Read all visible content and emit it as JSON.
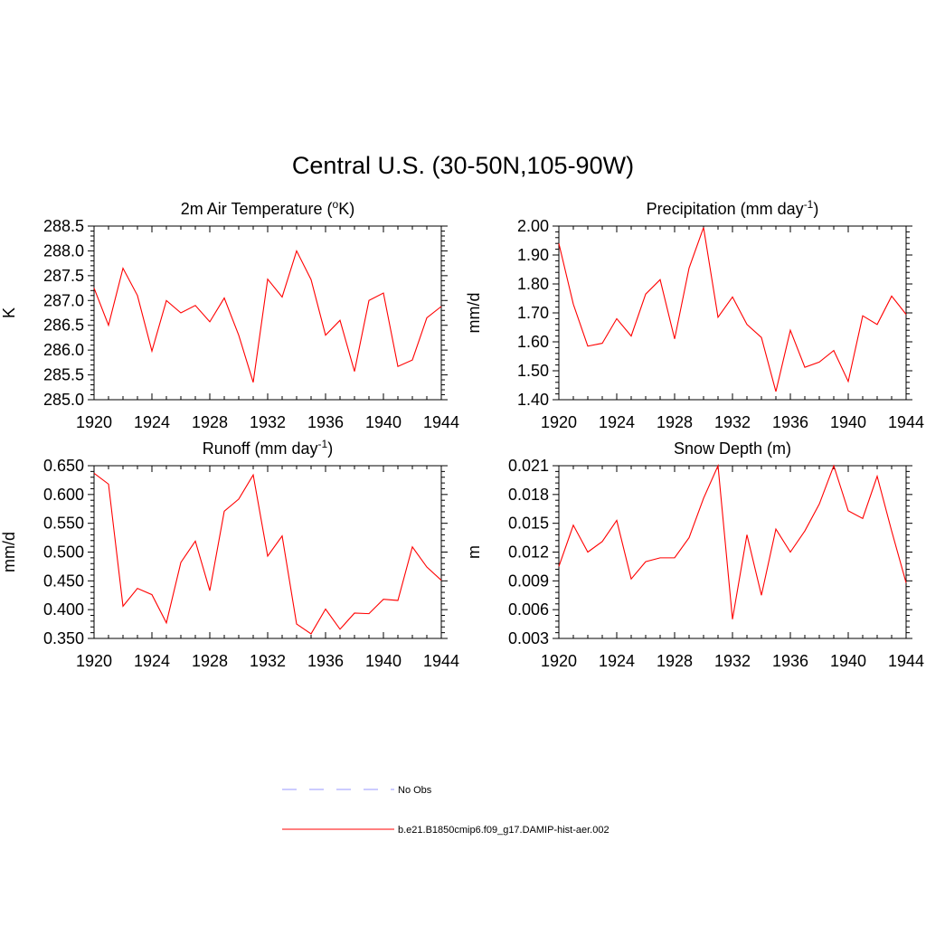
{
  "figure": {
    "title": "Central U.S. (30-50N,105-90W)"
  },
  "legend": {
    "items": [
      {
        "label": "No Obs",
        "color": "#9999ff",
        "dash": "dashed"
      },
      {
        "label": "b.e21.B1850cmip6.f09_g17.DAMIP-hist-aer.002",
        "color": "#ff0000",
        "dash": "solid"
      }
    ]
  },
  "chart_data": [
    {
      "type": "line",
      "title": "2m Air Temperature (oK)",
      "title_parts": [
        {
          "t": "2m Air Temperature ("
        },
        {
          "t": "o",
          "sup": true
        },
        {
          "t": "K)"
        }
      ],
      "xlabel": "",
      "ylabel": "K",
      "xlim": [
        1920,
        1944
      ],
      "ylim": [
        285.0,
        288.5
      ],
      "xticks": [
        "1920",
        "1924",
        "1928",
        "1932",
        "1936",
        "1940",
        "1944"
      ],
      "yticks": [
        "285.0",
        "285.5",
        "286.0",
        "286.5",
        "287.0",
        "287.5",
        "288.0",
        "288.5"
      ],
      "grid": false,
      "x": [
        1920,
        1921,
        1922,
        1923,
        1924,
        1925,
        1926,
        1927,
        1928,
        1929,
        1930,
        1931,
        1932,
        1933,
        1934,
        1935,
        1936,
        1937,
        1938,
        1939,
        1940,
        1941,
        1942,
        1943,
        1944
      ],
      "series": [
        {
          "name": "b.e21.B1850cmip6.f09_g17.DAMIP-hist-aer.002",
          "color": "#ff0000",
          "values": [
            287.25,
            286.5,
            287.65,
            287.1,
            285.98,
            287.0,
            286.75,
            286.9,
            286.57,
            287.05,
            286.3,
            285.35,
            287.43,
            287.07,
            288.0,
            287.42,
            286.3,
            286.6,
            285.57,
            287.0,
            287.15,
            285.67,
            285.8,
            286.65,
            286.88
          ]
        }
      ]
    },
    {
      "type": "line",
      "title": "Precipitation (mm day-1)",
      "title_parts": [
        {
          "t": "Precipitation (mm day"
        },
        {
          "t": "-1",
          "sup": true
        },
        {
          "t": ")"
        }
      ],
      "xlabel": "",
      "ylabel": "mm/d",
      "xlim": [
        1920,
        1944
      ],
      "ylim": [
        1.4,
        2.0
      ],
      "xticks": [
        "1920",
        "1924",
        "1928",
        "1932",
        "1936",
        "1940",
        "1944"
      ],
      "yticks": [
        "1.40",
        "1.50",
        "1.60",
        "1.70",
        "1.80",
        "1.90",
        "2.00"
      ],
      "grid": false,
      "x": [
        1920,
        1921,
        1922,
        1923,
        1924,
        1925,
        1926,
        1927,
        1928,
        1929,
        1930,
        1931,
        1932,
        1933,
        1934,
        1935,
        1936,
        1937,
        1938,
        1939,
        1940,
        1941,
        1942,
        1943,
        1944
      ],
      "series": [
        {
          "name": "b.e21.B1850cmip6.f09_g17.DAMIP-hist-aer.002",
          "color": "#ff0000",
          "values": [
            1.94,
            1.73,
            1.585,
            1.595,
            1.68,
            1.62,
            1.765,
            1.815,
            1.61,
            1.855,
            1.995,
            1.685,
            1.755,
            1.66,
            1.615,
            1.428,
            1.64,
            1.512,
            1.53,
            1.57,
            1.463,
            1.69,
            1.66,
            1.758,
            1.695
          ]
        }
      ]
    },
    {
      "type": "line",
      "title": "Runoff (mm day-1)",
      "title_parts": [
        {
          "t": "Runoff (mm day"
        },
        {
          "t": "-1",
          "sup": true
        },
        {
          "t": ")"
        }
      ],
      "xlabel": "",
      "ylabel": "mm/d",
      "xlim": [
        1920,
        1944
      ],
      "ylim": [
        0.35,
        0.65
      ],
      "xticks": [
        "1920",
        "1924",
        "1928",
        "1932",
        "1936",
        "1940",
        "1944"
      ],
      "yticks": [
        "0.350",
        "0.400",
        "0.450",
        "0.500",
        "0.550",
        "0.600",
        "0.650"
      ],
      "grid": false,
      "x": [
        1920,
        1921,
        1922,
        1923,
        1924,
        1925,
        1926,
        1927,
        1928,
        1929,
        1930,
        1931,
        1932,
        1933,
        1934,
        1935,
        1936,
        1937,
        1938,
        1939,
        1940,
        1941,
        1942,
        1943,
        1944
      ],
      "series": [
        {
          "name": "b.e21.B1850cmip6.f09_g17.DAMIP-hist-aer.002",
          "color": "#ff0000",
          "values": [
            0.637,
            0.618,
            0.406,
            0.437,
            0.426,
            0.377,
            0.482,
            0.519,
            0.433,
            0.571,
            0.592,
            0.634,
            0.493,
            0.528,
            0.375,
            0.358,
            0.401,
            0.366,
            0.394,
            0.393,
            0.418,
            0.416,
            0.509,
            0.474,
            0.451
          ]
        }
      ]
    },
    {
      "type": "line",
      "title": "Snow Depth (m)",
      "title_parts": [
        {
          "t": "Snow Depth (m)"
        }
      ],
      "xlabel": "",
      "ylabel": "m",
      "xlim": [
        1920,
        1944
      ],
      "ylim": [
        0.003,
        0.021
      ],
      "xticks": [
        "1920",
        "1924",
        "1928",
        "1932",
        "1936",
        "1940",
        "1944"
      ],
      "yticks": [
        "0.003",
        "0.006",
        "0.009",
        "0.012",
        "0.015",
        "0.018",
        "0.021"
      ],
      "grid": false,
      "x": [
        1920,
        1921,
        1922,
        1923,
        1924,
        1925,
        1926,
        1927,
        1928,
        1929,
        1930,
        1931,
        1932,
        1933,
        1934,
        1935,
        1936,
        1937,
        1938,
        1939,
        1940,
        1941,
        1942,
        1943,
        1944
      ],
      "series": [
        {
          "name": "b.e21.B1850cmip6.f09_g17.DAMIP-hist-aer.002",
          "color": "#ff0000",
          "values": [
            0.0105,
            0.0148,
            0.012,
            0.0131,
            0.0153,
            0.0092,
            0.011,
            0.0114,
            0.0114,
            0.0135,
            0.0176,
            0.021,
            0.005,
            0.0138,
            0.0075,
            0.0144,
            0.012,
            0.0142,
            0.017,
            0.021,
            0.0163,
            0.0155,
            0.0199,
            0.0142,
            0.0088
          ]
        }
      ]
    }
  ]
}
